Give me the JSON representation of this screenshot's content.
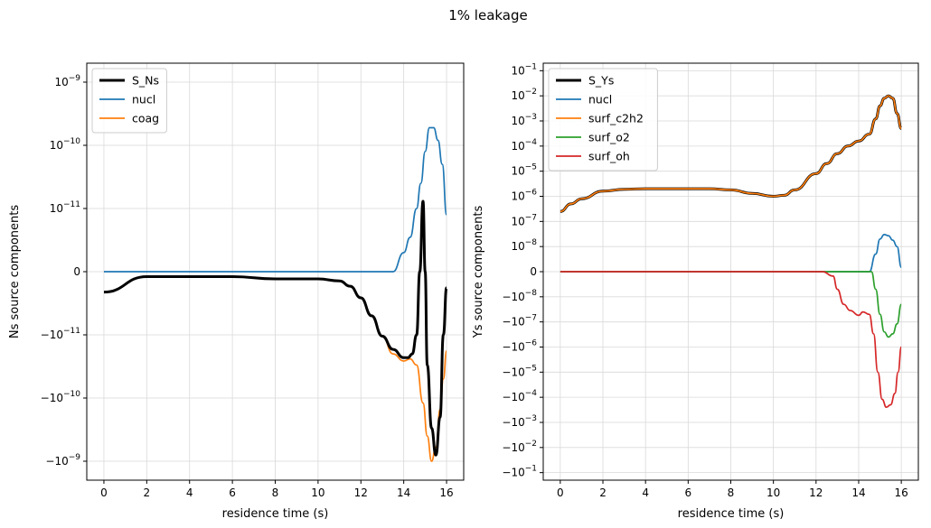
{
  "figure": {
    "title": "1% leakage"
  },
  "chart_data": [
    {
      "type": "line",
      "xlabel": "residence time (s)",
      "ylabel": "Ns source components",
      "yscale": "symlog",
      "xlim": [
        -0.8,
        16.8
      ],
      "xticks": [
        0,
        2,
        4,
        6,
        8,
        10,
        12,
        14,
        16
      ],
      "ytick_labels": [
        "10^-9",
        "10^-10",
        "10^-11",
        "0",
        "-10^-11",
        "-10^-10",
        "-10^-9"
      ],
      "grid": true,
      "legend_position": "upper left",
      "series": [
        {
          "name": "S_Ns",
          "color": "#000000",
          "x": [
            0,
            2,
            4,
            6,
            8,
            10,
            11,
            11.5,
            12,
            12.5,
            13,
            13.5,
            14,
            14.2,
            14.4,
            14.6,
            14.75,
            14.9,
            15.0,
            15.1,
            15.3,
            15.5,
            15.7,
            15.85,
            16.0
          ],
          "y": [
            -2.1e-12,
            -1.2e-12,
            -1.2e-12,
            -1.2e-12,
            -1.3e-12,
            -1.3e-12,
            -1.4e-12,
            -1.7e-12,
            -2.6e-12,
            -5e-12,
            -1.05e-11,
            -1.7e-11,
            -2.3e-11,
            -2.3e-11,
            -2e-11,
            -1e-11,
            1e-12,
            1.3e-11,
            -1e-12,
            -3e-11,
            -3e-10,
            -8e-10,
            -2e-10,
            -1e-11,
            -1.8e-12
          ]
        },
        {
          "name": "nucl",
          "color": "#1f77b4",
          "x": [
            0,
            4,
            8,
            10,
            11,
            11.5,
            12,
            12.5,
            13,
            13.5,
            14,
            14.3,
            14.6,
            14.8,
            15.0,
            15.2,
            15.4,
            15.6,
            15.8,
            16.0
          ],
          "y": [
            1e-14,
            1e-14,
            2e-14,
            5e-14,
            1.5e-13,
            3e-13,
            5e-13,
            3e-13,
            5e-13,
            8e-13,
            2e-12,
            3.5e-12,
            1e-11,
            2.5e-11,
            8e-11,
            1.9e-10,
            1.9e-10,
            1.2e-10,
            5e-11,
            8e-12
          ]
        },
        {
          "name": "coag",
          "color": "#ff7f0e",
          "x": [
            0,
            2,
            4,
            6,
            8,
            10,
            11,
            11.5,
            12,
            12.5,
            13,
            13.5,
            14,
            14.3,
            14.6,
            14.9,
            15.1,
            15.3,
            15.5,
            15.7,
            15.85,
            16.0
          ],
          "y": [
            -2.1e-12,
            -1.2e-12,
            -1.2e-12,
            -1.2e-12,
            -1.3e-12,
            -1.3e-12,
            -1.4e-12,
            -1.7e-12,
            -2.6e-12,
            -5e-12,
            -1.05e-11,
            -2e-11,
            -2.6e-11,
            -2.4e-11,
            -3e-11,
            -1.2e-10,
            -4e-10,
            -1e-09,
            -6e-10,
            -1.5e-10,
            -5e-11,
            -1.8e-11
          ]
        }
      ]
    },
    {
      "type": "line",
      "xlabel": "residence time (s)",
      "ylabel": "Ys source components",
      "yscale": "symlog",
      "xlim": [
        -0.8,
        16.8
      ],
      "xticks": [
        0,
        2,
        4,
        6,
        8,
        10,
        12,
        14,
        16
      ],
      "ytick_labels": [
        "10^-1",
        "10^-2",
        "10^-3",
        "10^-4",
        "10^-5",
        "10^-6",
        "10^-7",
        "10^-8",
        "0",
        "-10^-8",
        "-10^-7",
        "-10^-6",
        "-10^-5",
        "-10^-4",
        "-10^-3",
        "-10^-2",
        "-10^-1"
      ],
      "grid": true,
      "legend_position": "upper left",
      "series": [
        {
          "name": "S_Ys",
          "color": "#000000",
          "x": [
            0,
            0.5,
            1,
            2,
            3,
            4,
            6,
            7,
            8,
            9,
            10,
            10.5,
            11,
            12,
            12.5,
            13,
            13.5,
            14,
            14.5,
            14.8,
            15.0,
            15.2,
            15.4,
            15.6,
            15.8,
            16.0
          ],
          "y": [
            2.5e-07,
            5e-07,
            8e-07,
            1.6e-06,
            1.9e-06,
            2e-06,
            2e-06,
            2e-06,
            1.8e-06,
            1.3e-06,
            1e-06,
            1.1e-06,
            1.8e-06,
            8e-06,
            2e-05,
            5e-05,
            0.0001,
            0.00016,
            0.0003,
            0.0012,
            0.004,
            0.008,
            0.01,
            0.008,
            0.002,
            0.0005
          ]
        },
        {
          "name": "nucl",
          "color": "#1f77b4",
          "x": [
            0,
            4,
            8,
            12,
            13,
            14,
            14.5,
            14.8,
            15.0,
            15.2,
            15.4,
            15.6,
            15.8,
            16.0
          ],
          "y": [
            1e-12,
            1e-12,
            1e-12,
            2e-11,
            1e-10,
            3e-10,
            1e-09,
            5e-09,
            2e-08,
            3e-08,
            2.7e-08,
            1.8e-08,
            1e-08,
            1.5e-09
          ]
        },
        {
          "name": "surf_c2h2",
          "color": "#ff7f0e",
          "x": [
            0,
            0.5,
            1,
            2,
            3,
            4,
            6,
            7,
            8,
            9,
            10,
            10.5,
            11,
            12,
            12.5,
            13,
            13.5,
            14,
            14.5,
            14.8,
            15.0,
            15.2,
            15.4,
            15.6,
            15.8,
            16.0
          ],
          "y": [
            2.5e-07,
            5e-07,
            8e-07,
            1.6e-06,
            1.9e-06,
            2e-06,
            2e-06,
            2e-06,
            1.8e-06,
            1.3e-06,
            1e-06,
            1.1e-06,
            1.8e-06,
            8e-06,
            2e-05,
            5e-05,
            0.0001,
            0.00016,
            0.0003,
            0.0012,
            0.004,
            0.008,
            0.01,
            0.008,
            0.002,
            0.0005
          ]
        },
        {
          "name": "surf_o2",
          "color": "#2ca02c",
          "x": [
            0,
            4,
            8,
            10,
            12,
            13,
            14,
            14.6,
            14.8,
            15.0,
            15.2,
            15.4,
            15.6,
            15.8,
            16.0
          ],
          "y": [
            -1e-12,
            -1e-12,
            -1e-12,
            -1e-12,
            -1e-11,
            -1e-10,
            -3e-10,
            -1e-09,
            -5e-09,
            -5e-08,
            -2.5e-07,
            -4e-07,
            -3e-07,
            -1.2e-07,
            -2e-08
          ]
        },
        {
          "name": "surf_oh",
          "color": "#d62728",
          "x": [
            0,
            4,
            8,
            10,
            11,
            12,
            12.3,
            12.8,
            13.0,
            13.3,
            13.6,
            14.0,
            14.2,
            14.5,
            14.7,
            14.9,
            15.1,
            15.3,
            15.5,
            15.7,
            15.85,
            16.0
          ],
          "y": [
            -1e-12,
            -1e-12,
            -1e-12,
            -2e-11,
            -2e-10,
            -1e-09,
            -8e-10,
            -1.5e-09,
            -5e-09,
            -2e-08,
            -3.5e-08,
            -5.5e-08,
            -4e-08,
            -5e-08,
            -3e-07,
            -1e-05,
            -0.00012,
            -0.00025,
            -0.0002,
            -7e-05,
            -1e-05,
            -1e-06
          ]
        }
      ]
    }
  ]
}
